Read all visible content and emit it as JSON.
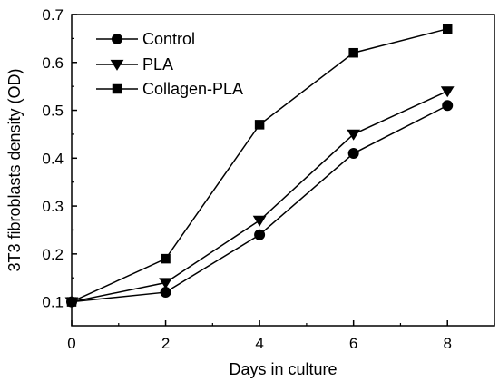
{
  "chart_data": {
    "type": "line",
    "title": "",
    "xlabel": "Days in culture",
    "ylabel": "3T3 fibroblasts density (OD)",
    "xlim": [
      0,
      9
    ],
    "ylim": [
      0.05,
      0.7
    ],
    "xticks": [
      0,
      2,
      4,
      6,
      8
    ],
    "yticks": [
      0.1,
      0.2,
      0.3,
      0.4,
      0.5,
      0.6,
      0.7
    ],
    "grid": false,
    "legend_position": "top-left",
    "x": [
      0,
      2,
      4,
      6,
      8
    ],
    "series": [
      {
        "name": "Control",
        "marker": "circle",
        "color": "#000000",
        "values": [
          0.1,
          0.12,
          0.24,
          0.41,
          0.51
        ]
      },
      {
        "name": "PLA",
        "marker": "triangle-down",
        "color": "#000000",
        "values": [
          0.1,
          0.14,
          0.27,
          0.45,
          0.54
        ]
      },
      {
        "name": "Collagen-PLA",
        "marker": "square",
        "color": "#000000",
        "values": [
          0.1,
          0.19,
          0.47,
          0.62,
          0.67
        ]
      }
    ]
  }
}
